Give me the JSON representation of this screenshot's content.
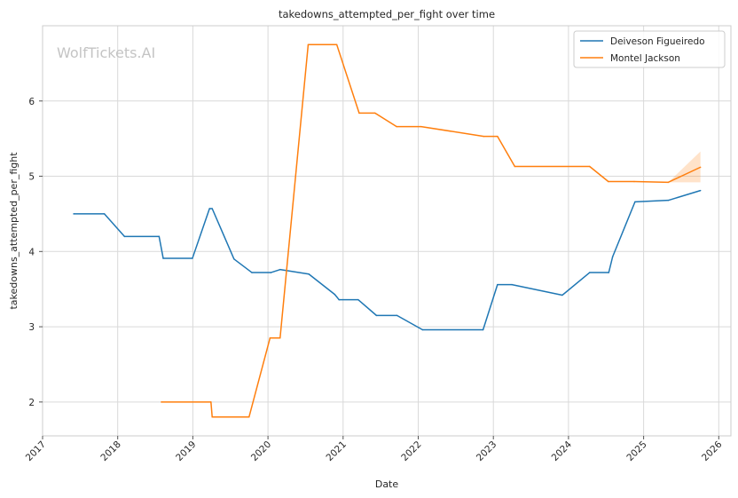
{
  "chart_data": {
    "type": "line",
    "title": "takedowns_attempted_per_fight over time",
    "xlabel": "Date",
    "ylabel": "takedowns_attempted_per_fight",
    "watermark": "WolfTickets.AI",
    "grid": true,
    "legend_position": "top-right",
    "xlim": [
      "2017-01-01",
      "2026-03-01"
    ],
    "ylim": [
      1.55,
      7.0
    ],
    "x_ticks": [
      "2017",
      "2018",
      "2019",
      "2020",
      "2021",
      "2022",
      "2023",
      "2024",
      "2025",
      "2026"
    ],
    "y_ticks": [
      2,
      3,
      4,
      5,
      6
    ],
    "series": [
      {
        "name": "Deiveson Figueiredo",
        "color": "#1f77b4",
        "points": [
          [
            "2017-06-01",
            4.5
          ],
          [
            "2017-10-28",
            4.5
          ],
          [
            "2018-02-03",
            4.2
          ],
          [
            "2018-07-21",
            4.2
          ],
          [
            "2018-08-10",
            3.91
          ],
          [
            "2018-12-30",
            3.91
          ],
          [
            "2019-03-23",
            4.57
          ],
          [
            "2019-04-05",
            4.57
          ],
          [
            "2019-07-20",
            3.9
          ],
          [
            "2019-10-15",
            3.72
          ],
          [
            "2020-01-15",
            3.72
          ],
          [
            "2020-02-29",
            3.76
          ],
          [
            "2020-07-18",
            3.7
          ],
          [
            "2020-11-21",
            3.43
          ],
          [
            "2020-12-12",
            3.36
          ],
          [
            "2021-03-15",
            3.36
          ],
          [
            "2021-06-12",
            3.15
          ],
          [
            "2021-09-20",
            3.15
          ],
          [
            "2022-01-22",
            2.96
          ],
          [
            "2022-11-12",
            2.96
          ],
          [
            "2023-01-21",
            3.56
          ],
          [
            "2023-04-01",
            3.56
          ],
          [
            "2023-12-02",
            3.42
          ],
          [
            "2024-04-13",
            3.72
          ],
          [
            "2024-07-15",
            3.72
          ],
          [
            "2024-08-03",
            3.93
          ],
          [
            "2024-11-20",
            4.66
          ],
          [
            "2025-05-01",
            4.68
          ],
          [
            "2025-10-04",
            4.81
          ]
        ]
      },
      {
        "name": "Montel Jackson",
        "color": "#ff7f0e",
        "points": [
          [
            "2018-08-01",
            2.0
          ],
          [
            "2019-03-30",
            2.0
          ],
          [
            "2019-04-05",
            1.8
          ],
          [
            "2019-10-01",
            1.8
          ],
          [
            "2020-01-11",
            2.85
          ],
          [
            "2020-02-29",
            2.85
          ],
          [
            "2020-07-15",
            6.75
          ],
          [
            "2020-12-01",
            6.75
          ],
          [
            "2021-03-20",
            5.84
          ],
          [
            "2021-06-05",
            5.84
          ],
          [
            "2021-09-18",
            5.66
          ],
          [
            "2022-01-15",
            5.66
          ],
          [
            "2022-11-15",
            5.53
          ],
          [
            "2023-01-21",
            5.53
          ],
          [
            "2023-04-15",
            5.13
          ],
          [
            "2024-04-13",
            5.13
          ],
          [
            "2024-07-13",
            4.93
          ],
          [
            "2024-11-16",
            4.93
          ],
          [
            "2025-05-01",
            4.92
          ],
          [
            "2025-10-04",
            5.12
          ]
        ],
        "band": {
          "x": [
            "2025-05-01",
            "2025-10-04"
          ],
          "lower": [
            4.92,
            4.92
          ],
          "upper": [
            4.92,
            5.33
          ]
        }
      }
    ]
  }
}
